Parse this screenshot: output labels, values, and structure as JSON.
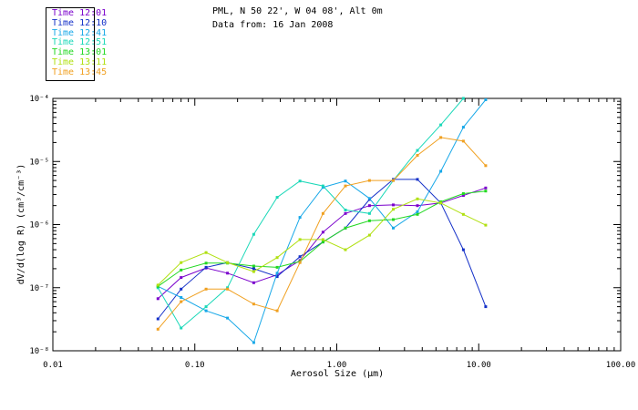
{
  "header": {
    "location": "PML, N 50 22', W 04 08', Alt 0m",
    "date_line": "Data from: 16 Jan 2008"
  },
  "legend": [
    {
      "label": "Time 12:01",
      "color": "#7a00cc"
    },
    {
      "label": "Time 12:10",
      "color": "#1430c8"
    },
    {
      "label": "Time 12:41",
      "color": "#18a8e8"
    },
    {
      "label": "Time 12:51",
      "color": "#1ad8b8"
    },
    {
      "label": "Time 13:01",
      "color": "#22d822"
    },
    {
      "label": "Time 13:11",
      "color": "#b0e010"
    },
    {
      "label": "Time 13:45",
      "color": "#f0a020"
    }
  ],
  "chart_data": {
    "type": "line",
    "xlabel": "Aerosol Size (μm)",
    "ylabel": "dV/d(log R) (cm³/cm⁻³)",
    "x_scale": "log",
    "y_scale": "log",
    "xlim": [
      0.01,
      100
    ],
    "ylim": [
      1e-08,
      0.0001
    ],
    "x_ticks": [
      "0.01",
      "0.10",
      "1.00",
      "10.00",
      "100.00"
    ],
    "y_ticks": [
      "10⁻⁸",
      "10⁻⁷",
      "10⁻⁶",
      "10⁻⁵",
      "10⁻⁴"
    ],
    "series": [
      {
        "name": "Time 12:01",
        "color": "#7a00cc",
        "x": [
          0.055,
          0.08,
          0.12,
          0.17,
          0.26,
          0.38,
          0.55,
          0.8,
          1.15,
          1.7,
          2.5,
          3.7,
          5.4,
          7.8,
          11.2
        ],
        "y": [
          6.7e-08,
          1.45e-07,
          2.05e-07,
          1.7e-07,
          1.2e-07,
          1.6e-07,
          2.7e-07,
          7.6e-07,
          1.5e-06,
          2e-06,
          2.05e-06,
          2e-06,
          2.2e-06,
          2.9e-06,
          3.8e-06
        ]
      },
      {
        "name": "Time 12:10",
        "color": "#1430c8",
        "x": [
          0.055,
          0.08,
          0.12,
          0.17,
          0.26,
          0.38,
          0.55,
          0.8,
          1.15,
          1.7,
          2.5,
          3.7,
          5.4,
          7.8,
          11.2
        ],
        "y": [
          3.2e-08,
          9.5e-08,
          2.1e-07,
          2.5e-07,
          2e-07,
          1.5e-07,
          3.1e-07,
          5.3e-07,
          8.8e-07,
          2.5e-06,
          5.2e-06,
          5.2e-06,
          2.2e-06,
          4e-07,
          5e-08
        ]
      },
      {
        "name": "Time 12:41",
        "color": "#18a8e8",
        "x": [
          0.055,
          0.08,
          0.12,
          0.17,
          0.26,
          0.38,
          0.55,
          0.8,
          1.15,
          1.7,
          2.5,
          3.7,
          5.4,
          7.8,
          11.2
        ],
        "y": [
          1.05e-07,
          7e-08,
          4.3e-08,
          3.3e-08,
          1.35e-08,
          1.7e-07,
          1.3e-06,
          3.9e-06,
          4.9e-06,
          2.6e-06,
          8.8e-07,
          1.6e-06,
          7e-06,
          3.5e-05,
          9.5e-05
        ]
      },
      {
        "name": "Time 12:51",
        "color": "#1ad8b8",
        "x": [
          0.055,
          0.08,
          0.12,
          0.17,
          0.26,
          0.38,
          0.55,
          0.8,
          1.15,
          1.7,
          2.5,
          3.7,
          5.4,
          7.8
        ],
        "y": [
          1e-07,
          2.3e-08,
          5e-08,
          1e-07,
          7e-07,
          2.7e-06,
          4.9e-06,
          4.1e-06,
          1.7e-06,
          1.5e-06,
          5e-06,
          1.5e-05,
          3.8e-05,
          0.0001
        ]
      },
      {
        "name": "Time 13:01",
        "color": "#22d822",
        "x": [
          0.055,
          0.08,
          0.12,
          0.17,
          0.26,
          0.38,
          0.55,
          0.8,
          1.15,
          1.7,
          2.5,
          3.7,
          5.4,
          7.8,
          11.2
        ],
        "y": [
          1.05e-07,
          1.9e-07,
          2.45e-07,
          2.45e-07,
          2.2e-07,
          2.1e-07,
          2.6e-07,
          5.3e-07,
          8.8e-07,
          1.15e-06,
          1.2e-06,
          1.45e-06,
          2.3e-06,
          3.1e-06,
          3.4e-06
        ]
      },
      {
        "name": "Time 13:11",
        "color": "#b0e010",
        "x": [
          0.055,
          0.08,
          0.12,
          0.17,
          0.26,
          0.38,
          0.55,
          0.8,
          1.15,
          1.7,
          2.5,
          3.7,
          5.4,
          7.8,
          11.2
        ],
        "y": [
          1.1e-07,
          2.5e-07,
          3.6e-07,
          2.5e-07,
          1.8e-07,
          3e-07,
          5.8e-07,
          5.8e-07,
          4e-07,
          6.8e-07,
          1.75e-06,
          2.55e-06,
          2.2e-06,
          1.45e-06,
          9.8e-07
        ]
      },
      {
        "name": "Time 13:45",
        "color": "#f0a020",
        "x": [
          0.055,
          0.08,
          0.12,
          0.17,
          0.26,
          0.38,
          0.55,
          0.8,
          1.15,
          1.7,
          2.5,
          3.7,
          5.4,
          7.8,
          11.2
        ],
        "y": [
          2.2e-08,
          6e-08,
          9.5e-08,
          9.5e-08,
          5.5e-08,
          4.3e-08,
          2.5e-07,
          1.5e-06,
          4.1e-06,
          5e-06,
          5e-06,
          1.25e-05,
          2.4e-05,
          2.1e-05,
          8.6e-06
        ]
      }
    ]
  }
}
